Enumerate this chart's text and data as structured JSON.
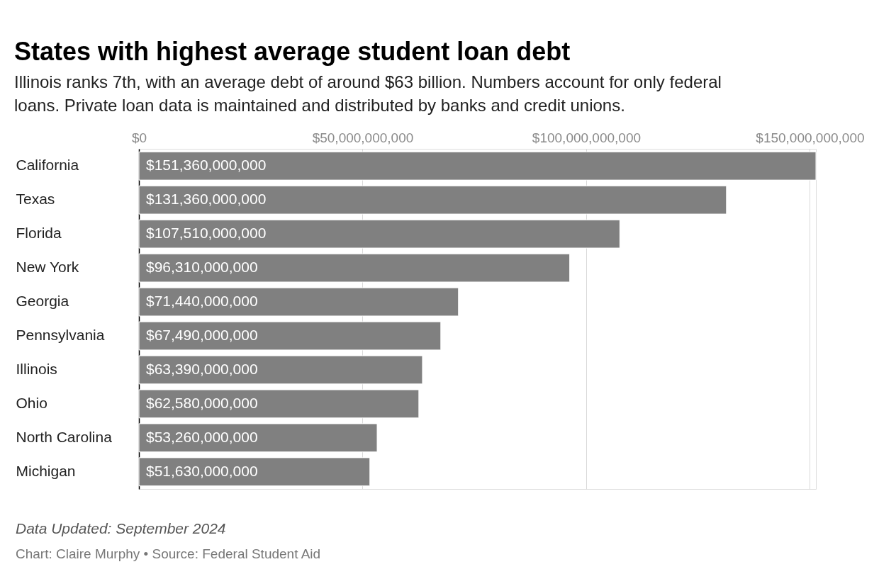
{
  "chart_data": {
    "type": "bar",
    "orientation": "horizontal",
    "title": "States with highest average student loan debt",
    "subtitle": "Illinois ranks 7th, with an average debt of around $63 billion. Numbers account for only federal loans. Private loan data is maintained and distributed by banks and credit unions.",
    "categories": [
      "California",
      "Texas",
      "Florida",
      "New York",
      "Georgia",
      "Pennsylvania",
      "Illinois",
      "Ohio",
      "North Carolina",
      "Michigan"
    ],
    "values": [
      151360000000,
      131360000000,
      107510000000,
      96310000000,
      71440000000,
      67490000000,
      63390000000,
      62580000000,
      53260000000,
      51630000000
    ],
    "value_labels": [
      "$151,360,000,000",
      "$131,360,000,000",
      "$107,510,000,000",
      "$96,310,000,000",
      "$71,440,000,000",
      "$67,490,000,000",
      "$63,390,000,000",
      "$62,580,000,000",
      "$53,260,000,000",
      "$51,630,000,000"
    ],
    "color": "#808080",
    "xlim": [
      0,
      151360000000
    ],
    "xticks": [
      {
        "value": 0,
        "label": "$0"
      },
      {
        "value": 50000000000,
        "label": "$50,000,000,000"
      },
      {
        "value": 100000000000,
        "label": "$100,000,000,000"
      },
      {
        "value": 150000000000,
        "label": "$150,000,000,000"
      }
    ],
    "grid": "x",
    "annotations": [
      "Data Updated: September 2024",
      "Chart: Claire Murphy • Source: Federal Student Aid"
    ]
  }
}
